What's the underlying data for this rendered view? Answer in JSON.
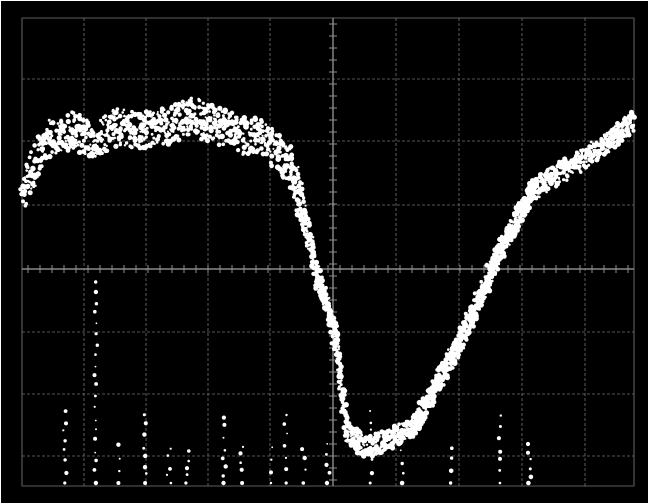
{
  "screen": {
    "background": "#000000",
    "frame_color": "#ffffff",
    "grid_color": "#6f6f6f",
    "trace_color": "#ffffff",
    "grid": true,
    "divisions_x": 10,
    "divisions_y": 8
  },
  "trace": {
    "description_hidden": true,
    "shape_points": [
      [
        0.0,
        0.62
      ],
      [
        0.04,
        0.74
      ],
      [
        0.08,
        0.76
      ],
      [
        0.12,
        0.74
      ],
      [
        0.16,
        0.77
      ],
      [
        0.2,
        0.76
      ],
      [
        0.24,
        0.77
      ],
      [
        0.28,
        0.79
      ],
      [
        0.32,
        0.77
      ],
      [
        0.36,
        0.75
      ],
      [
        0.4,
        0.74
      ],
      [
        0.44,
        0.68
      ],
      [
        0.46,
        0.58
      ],
      [
        0.48,
        0.46
      ],
      [
        0.5,
        0.38
      ],
      [
        0.515,
        0.3
      ],
      [
        0.53,
        0.12
      ],
      [
        0.56,
        0.08
      ],
      [
        0.6,
        0.1
      ],
      [
        0.64,
        0.13
      ],
      [
        0.66,
        0.17
      ],
      [
        0.68,
        0.22
      ],
      [
        0.7,
        0.27
      ],
      [
        0.72,
        0.32
      ],
      [
        0.74,
        0.38
      ],
      [
        0.76,
        0.44
      ],
      [
        0.78,
        0.5
      ],
      [
        0.8,
        0.55
      ],
      [
        0.82,
        0.6
      ],
      [
        0.84,
        0.64
      ],
      [
        0.88,
        0.67
      ],
      [
        0.92,
        0.7
      ],
      [
        0.96,
        0.74
      ],
      [
        1.0,
        0.78
      ]
    ],
    "pulse_markers": [
      0.07,
      0.12,
      0.16,
      0.2,
      0.24,
      0.27,
      0.33,
      0.36,
      0.41,
      0.43,
      0.46,
      0.5,
      0.57,
      0.62,
      0.7,
      0.78,
      0.83
    ]
  }
}
